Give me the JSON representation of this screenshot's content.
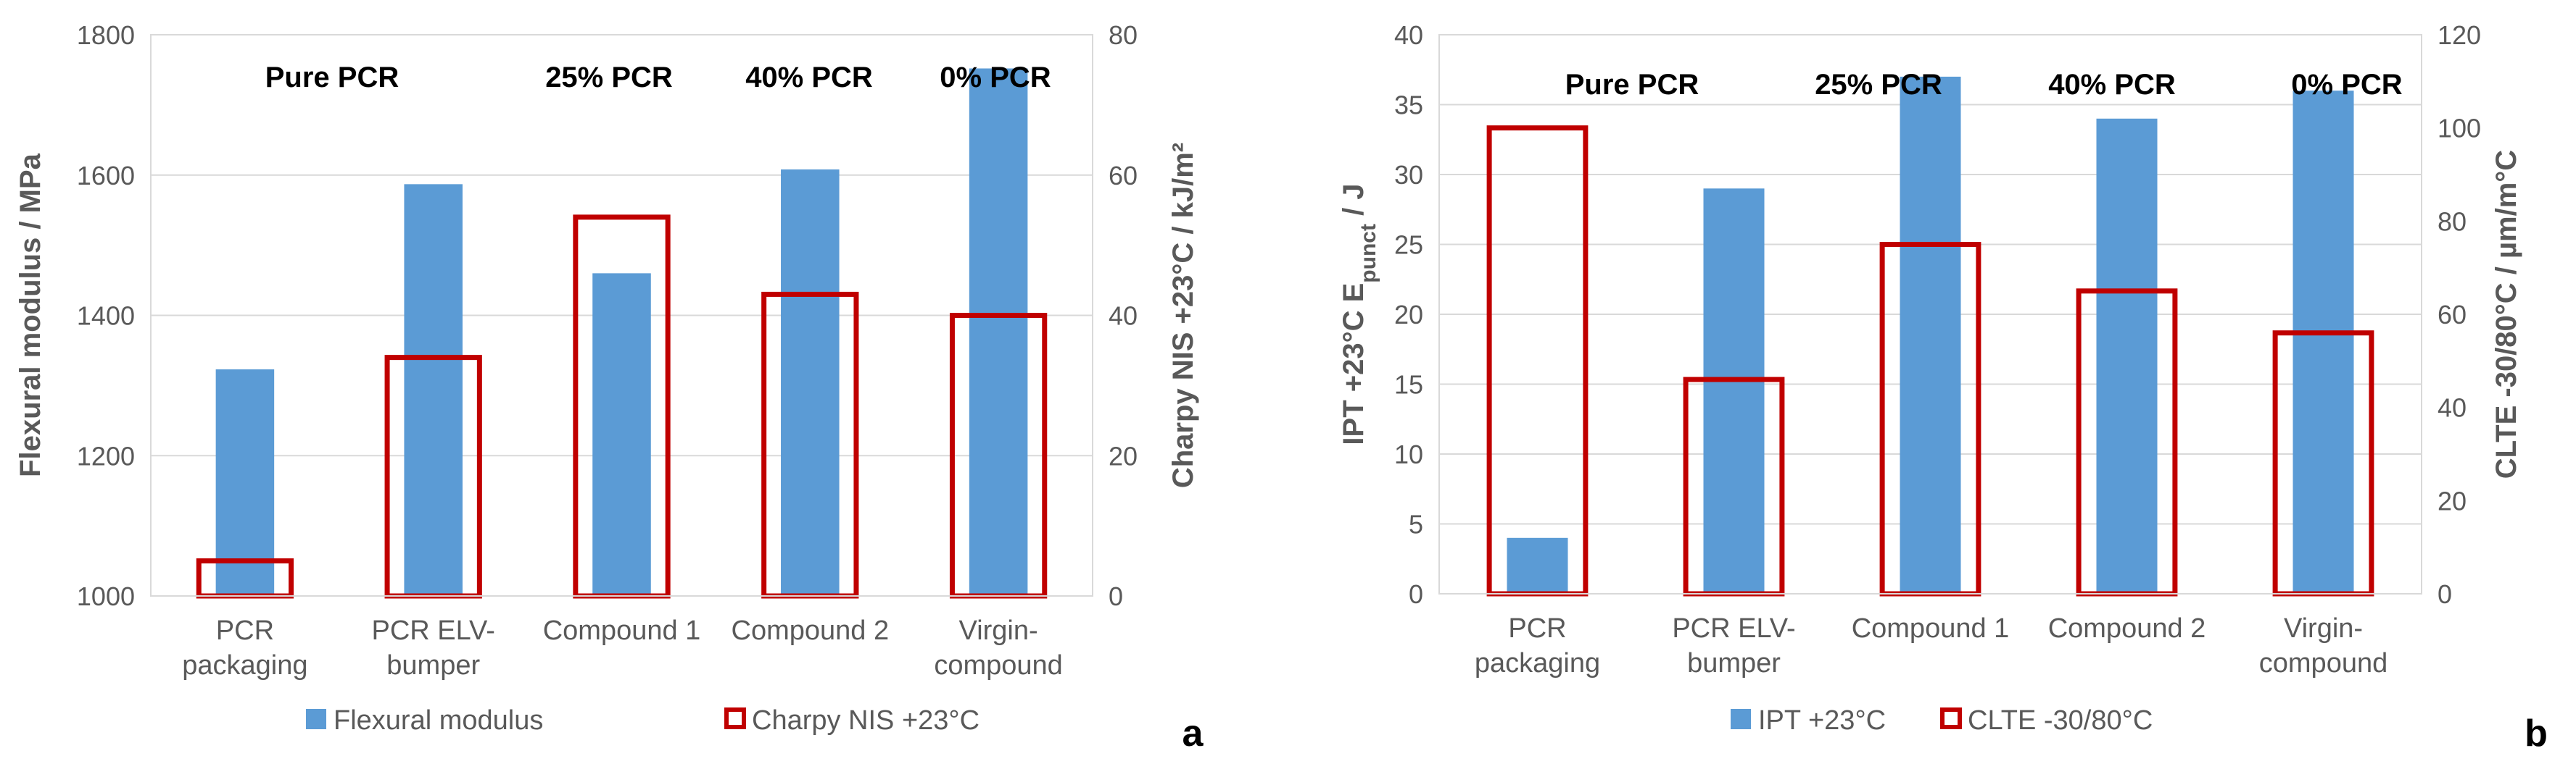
{
  "chart_data": [
    {
      "type": "bar",
      "panel_label": "a",
      "categories": [
        [
          "PCR",
          "packaging"
        ],
        [
          "PCR ELV-",
          "bumper"
        ],
        [
          "Compound 1"
        ],
        [
          "Compound 2"
        ],
        [
          "Virgin-",
          "compound"
        ]
      ],
      "series": [
        {
          "name": "Flexural modulus",
          "axis": "left",
          "style": "filled",
          "color": "#5B9BD5",
          "values": [
            1323,
            1587,
            1460,
            1608,
            1752
          ]
        },
        {
          "name": "Charpy NIS +23°C",
          "axis": "right",
          "style": "outline",
          "color": "#C00000",
          "values": [
            5,
            34,
            54,
            43,
            40
          ]
        }
      ],
      "y_left": {
        "label": "Flexural modulus / MPa",
        "min": 1000,
        "max": 1800,
        "ticks": [
          1000,
          1200,
          1400,
          1600,
          1800
        ]
      },
      "y_right": {
        "label": "Charpy NIS +23°C / kJ/m²",
        "min": 0,
        "max": 80,
        "ticks": [
          0,
          20,
          40,
          60,
          80
        ]
      },
      "annotations": [
        "Pure PCR",
        "25% PCR",
        "40% PCR",
        "0% PCR"
      ],
      "grid": true,
      "legend": "bottom"
    },
    {
      "type": "bar",
      "panel_label": "b",
      "categories": [
        [
          "PCR",
          "packaging"
        ],
        [
          "PCR ELV-",
          "bumper"
        ],
        [
          "Compound 1"
        ],
        [
          "Compound 2"
        ],
        [
          "Virgin-",
          "compound"
        ]
      ],
      "series": [
        {
          "name": "IPT +23°C",
          "axis": "left",
          "style": "filled",
          "color": "#5B9BD5",
          "values": [
            4,
            29,
            37,
            34,
            36
          ]
        },
        {
          "name": "CLTE -30/80°C",
          "axis": "right",
          "style": "outline",
          "color": "#C00000",
          "values": [
            100,
            46,
            75,
            65,
            56
          ]
        }
      ],
      "y_left": {
        "label_parts": [
          "IPT +23°C E",
          "punct",
          " / J"
        ],
        "min": 0,
        "max": 40,
        "ticks": [
          0,
          5,
          10,
          15,
          20,
          25,
          30,
          35,
          40
        ]
      },
      "y_right": {
        "label": "CLTE -30/80°C / µm/m°C",
        "min": 0,
        "max": 120,
        "ticks": [
          0,
          20,
          40,
          60,
          80,
          100,
          120
        ]
      },
      "annotations": [
        "Pure PCR",
        "25% PCR",
        "40% PCR",
        "0% PCR"
      ],
      "grid": true,
      "legend": "bottom"
    }
  ]
}
